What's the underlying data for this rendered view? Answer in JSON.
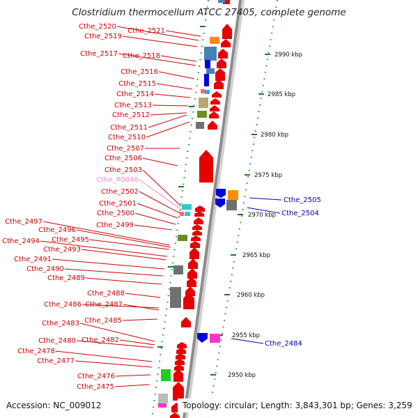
{
  "title": "Clostridium thermocellum ATCC 27405, complete genome",
  "accession": "Accession: NC_009012",
  "topology": "Topology: circular; Length: 3,843,301 bp; Genes: 3,259",
  "colors": {
    "plus_label": "#cc0000",
    "minus_label": "#0000aa",
    "rna_label": "#ee88cc",
    "backbone": "#8c8c8c",
    "tick": "#1a7a1a"
  },
  "kbp_labels": [
    "2990 kbp",
    "2985 kbp",
    "2980 kbp",
    "2975 kbp",
    "2970 kbp",
    "2965 kbp",
    "2960 kbp",
    "2955 kbp",
    "2950 kbp"
  ],
  "left_genes": [
    {
      "label": "Cthe_2520"
    },
    {
      "label": "Cthe_2521"
    },
    {
      "label": "Cthe_2519"
    },
    {
      "label": "Cthe_2517"
    },
    {
      "label": "Cthe_2518"
    },
    {
      "label": "Cthe_2516"
    },
    {
      "label": "Cthe_2515"
    },
    {
      "label": "Cthe_2514"
    },
    {
      "label": "Cthe_2513"
    },
    {
      "label": "Cthe_2512"
    },
    {
      "label": "Cthe_2511"
    },
    {
      "label": "Cthe_2510"
    },
    {
      "label": "Cthe_2507"
    },
    {
      "label": "Cthe_2506"
    },
    {
      "label": "Cthe_2503"
    },
    {
      "label": "Cthe_R0046"
    },
    {
      "label": "Cthe_2502"
    },
    {
      "label": "Cthe_2501"
    },
    {
      "label": "Cthe_2500"
    },
    {
      "label": "Cthe_2499"
    },
    {
      "label": "Cthe_2497"
    },
    {
      "label": "Cthe_2496"
    },
    {
      "label": "Cthe_2495"
    },
    {
      "label": "Cthe_2494"
    },
    {
      "label": "Cthe_2493"
    },
    {
      "label": "Cthe_2491"
    },
    {
      "label": "Cthe_2490"
    },
    {
      "label": "Cthe_2489"
    },
    {
      "label": "Cthe_2488"
    },
    {
      "label": "Cthe_2486"
    },
    {
      "label": "Cthe_2487"
    },
    {
      "label": "Cthe_2485"
    },
    {
      "label": "Cthe_2483"
    },
    {
      "label": "Cthe_2482"
    },
    {
      "label": "Cthe_2480"
    },
    {
      "label": "Cthe_2478"
    },
    {
      "label": "Cthe_2477"
    },
    {
      "label": "Cthe_2476"
    },
    {
      "label": "Cthe_2475"
    }
  ],
  "right_genes": [
    {
      "label": "Cthe_2505"
    },
    {
      "label": "Cthe_2504"
    },
    {
      "label": "Cthe_2484"
    }
  ]
}
